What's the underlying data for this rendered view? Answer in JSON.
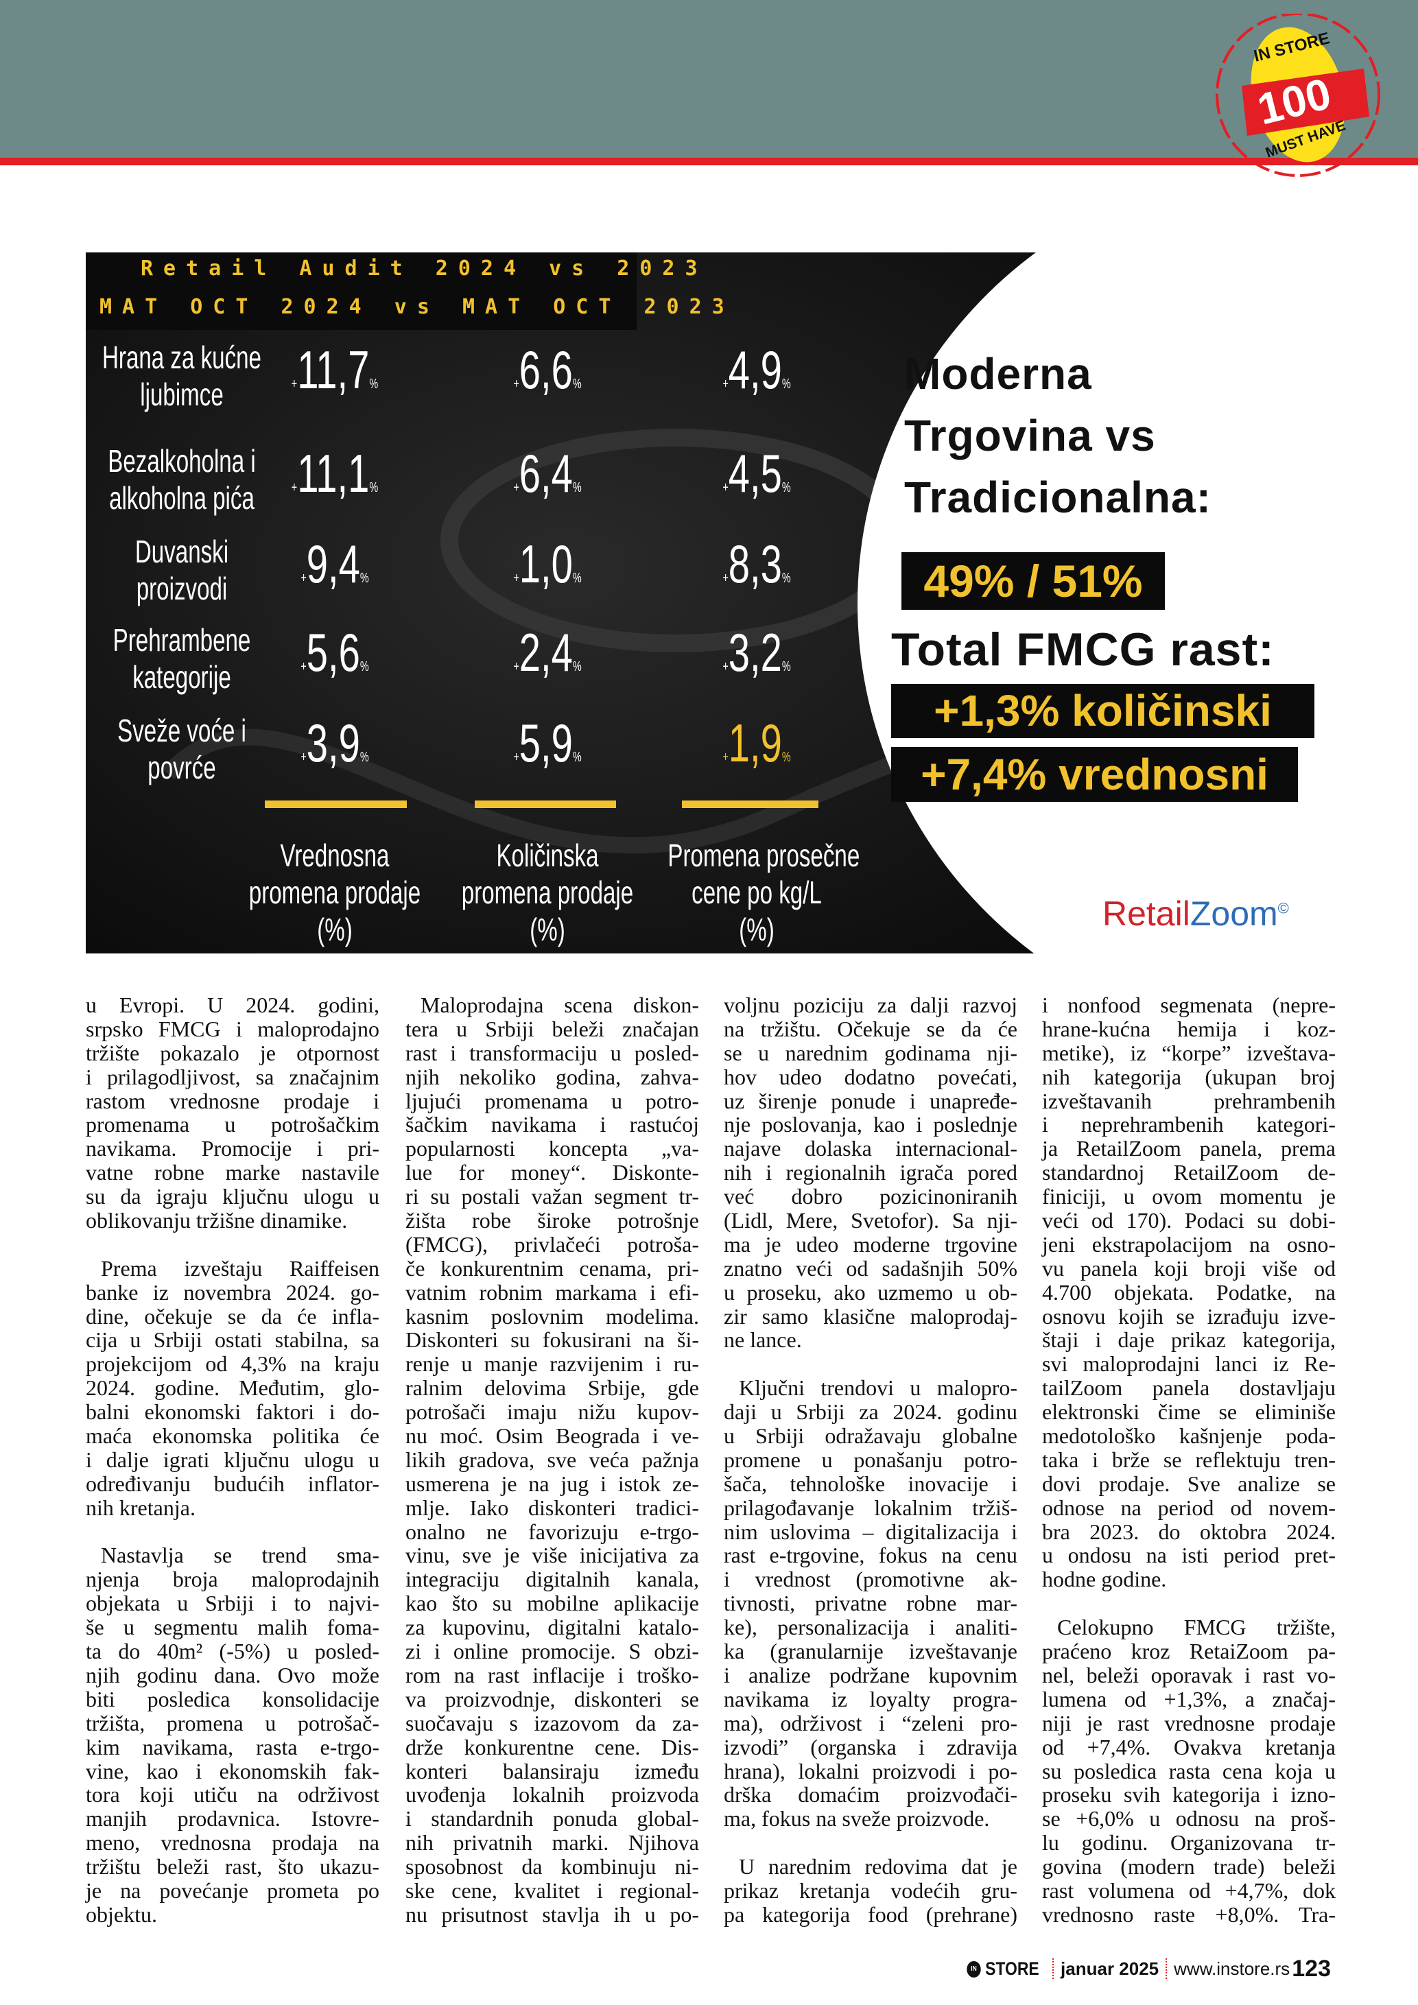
{
  "badge": {
    "brand": "IN STORE",
    "number": "100",
    "tagline": "MUST HAVE"
  },
  "infographic": {
    "title_line1": "Retail Audit 2024 vs 2023",
    "title_line2": "MAT OCT 2024 vs MAT OCT 2023",
    "rows": [
      {
        "label": [
          "Hrana za kućne",
          "ljubimce"
        ],
        "values": [
          "11,7",
          "6,6",
          "4,9"
        ]
      },
      {
        "label": [
          "Bezalkoholna i",
          "alkoholna pića"
        ],
        "values": [
          "11,1",
          "6,4",
          "4,5"
        ]
      },
      {
        "label": [
          "Duvanski",
          "proizvodi"
        ],
        "values": [
          "9,4",
          "1,0",
          "8,3"
        ]
      },
      {
        "label": [
          "Prehrambene",
          "kategorije"
        ],
        "values": [
          "5,6",
          "2,4",
          "3,2"
        ]
      },
      {
        "label": [
          "Sveže voće i",
          "povrće"
        ],
        "values": [
          "3,9",
          "5,9",
          "1,9"
        ]
      }
    ],
    "value_prefix": "+",
    "value_suffix": "%",
    "highlighted_value": "1,9",
    "columns": [
      [
        "Vrednosna",
        "promena prodaje",
        "(%)"
      ],
      [
        "Količinska",
        "promena prodaje",
        "(%)"
      ],
      [
        "Promena prosečne",
        "cene po kg/L",
        "(%)"
      ]
    ],
    "headline": [
      "Moderna",
      "Trgovina vs",
      "Tradicionalna:"
    ],
    "share": "49% / 51%",
    "total_title": "Total FMCG rast:",
    "growth_volume": "+1,3% količinski",
    "growth_value": "+7,4% vrednosni",
    "logo_part1": "Retail",
    "logo_part2": "Zoom",
    "logo_mark": "©",
    "colors": {
      "accent": "#f2c12e",
      "dark": "#0b0b0b",
      "logo_red": "#d2232a",
      "logo_blue": "#2d6db5"
    }
  },
  "body": {
    "columns": [
      [
        {
          "continued": true,
          "lines": [
            "u Evropi. U 2024. godini,",
            "srpsko FMCG i maloprodajno",
            "tržište pokazalo je otpornost",
            "i prilagodljivost, sa značajnim",
            "rastom vrednosne prodaje i",
            "promenama u potrošačkim",
            "navikama. Promocije i pri-",
            "vatne robne marke nastavile",
            "su da igraju ključnu ulogu u",
            "oblikovanju tržišne dinamike."
          ]
        },
        {
          "continued": false,
          "lines": [
            "Prema izveštaju Raiffeisen",
            "banke iz novembra 2024. go-",
            "dine, očekuje se da će infla-",
            "cija u Srbiji ostati stabilna, sa",
            "projekcijom od 4,3% na kraju",
            "2024. godine. Međutim, glo-",
            "balni ekonomski faktori i do-",
            "maća ekonomska politika će",
            "i dalje igrati ključnu ulogu u",
            "određivanju budućih inflator-",
            "nih kretanja."
          ]
        },
        {
          "continued": false,
          "lines": [
            "Nastavlja se trend sma-",
            "njenja broja maloprodajnih",
            "objekata u Srbiji i to najvi-",
            "še u segmentu malih foma-",
            "ta do 40m² (-5%) u posled-",
            "njih godinu dana. Ovo može",
            "biti posledica konsolidacije",
            "tržišta, promena u potrošač-",
            "kim navikama, rasta e-trgo-",
            "vine, kao i ekonomskih fak-",
            "tora koji utiču na održivost",
            "manjih prodavnica. Istovre-",
            "meno, vrednosna prodaja na",
            "tržištu beleži rast, što ukazu-",
            "je na povećanje prometa po",
            "objektu."
          ]
        }
      ],
      [
        {
          "continued": false,
          "lines": [
            "Maloprodajna scena diskon-",
            "tera u Srbiji beleži značajan",
            "rast i transformaciju u posled-",
            "njih nekoliko godina, zahva-",
            "ljujući promenama u potro-",
            "šačkim navikama i rastućoj",
            "popularnosti koncepta „va-",
            "lue for money“. Diskonte-",
            "ri su postali važan segment tr-",
            "žišta robe široke potrošnje",
            "(FMCG), privlačeći potroša-",
            "če konkurentnim cenama, pri-",
            "vatnim robnim markama i efi-",
            "kasnim poslovnim modelima.",
            "Diskonteri su fokusirani na ši-",
            "renje u manje razvijenim i ru-",
            "ralnim delovima Srbije, gde",
            "potrošači imaju nižu kupov-",
            "nu moć. Osim Beograda i ve-",
            "likih gradova, sve veća pažnja",
            "usmerena je na jug i istok ze-",
            "mlje. Iako diskonteri tradici-",
            "onalno ne favorizuju e-trgo-",
            "vinu, sve je više inicijativa za",
            "integraciju digitalnih kanala,",
            "kao što su mobilne aplikacije",
            "za kupovinu, digitalni katalo-",
            "zi i online promocije. S obzi-",
            "rom na rast inflacije i troško-",
            "va proizvodnje, diskonteri se",
            "suočavaju s izazovom da za-",
            "drže konkurentne cene. Dis-",
            "konteri balansiraju između",
            "uvođenja lokalnih proizvoda",
            "i standardnih ponuda global-",
            "nih privatnih marki. Njihova",
            "sposobnost da kombinuju ni-",
            "ske cene, kvalitet i regional-",
            "nu prisutnost stavlja ih u po-"
          ],
          "open_end": true
        }
      ],
      [
        {
          "continued": true,
          "lines": [
            "voljnu poziciju za dalji razvoj",
            "na tržištu. Očekuje se da će",
            "se u narednim godinama nji-",
            "hov udeo dodatno povećati,",
            "uz širenje ponude i unapređe-",
            "nje poslovanja, kao i poslednje",
            "najave dolaska internacional-",
            "nih i regionalnih igrača pored",
            "već dobro pozicinoniranih",
            "(Lidl, Mere, Svetofor). Sa nji-",
            "ma je udeo moderne trgovine",
            "znatno veći od sadašnjih 50%",
            "u proseku, ako uzmemo u ob-",
            "zir samo klasične maloprodaj-",
            "ne lance."
          ]
        },
        {
          "continued": false,
          "lines": [
            "Ključni trendovi u malopro-",
            "daji u Srbiji za 2024. godinu",
            "u Srbiji odražavaju globalne",
            "promene u ponašanju potro-",
            "šača, tehnološke inovacije i",
            "prilagođavanje lokalnim tržiš-",
            "nim uslovima – digitalizacija i",
            "rast e-trgovine, fokus na cenu",
            "i vrednost (promotivne ak-",
            "tivnosti, privatne robne mar-",
            "ke), personalizacija i analiti-",
            "ka (granularnije izveštavanje",
            "i analize podržane kupovnim",
            "navikama iz loyalty progra-",
            "ma), održivost i “zeleni pro-",
            "izvodi” (organska i zdravija",
            "hrana), lokalni proizvodi i po-",
            "drška domaćim proizvođači-",
            "ma, fokus na sveže proizvode."
          ]
        },
        {
          "continued": false,
          "lines": [
            "U narednim redovima dat je",
            "prikaz kretanja vodećih gru-",
            "pa kategorija food (prehrane)"
          ],
          "open_end": true
        }
      ],
      [
        {
          "continued": true,
          "lines": [
            "i nonfood segmenata (nepre-",
            "hrane-kućna hemija i koz-",
            "metike), iz “korpe” izveštava-",
            "nih kategorija (ukupan broj",
            "izveštavanih prehrambenih",
            "i neprehrambenih kategori-",
            "ja RetailZoom panela, prema",
            "standardnoj RetailZoom de-",
            "finiciji, u ovom momentu je",
            "veći od 170). Podaci su dobi-",
            "jeni ekstrapolacijom na osno-",
            "vu panela koji broji više od",
            "4.700 objekata. Podatke, na",
            "osnovu kojih se izrađuju izve-",
            "štaji i daje prikaz kategorija,",
            "svi maloprodajni lanci iz Re-",
            "tailZoom panela dostavljaju",
            "elektronski čime se eliminiše",
            "medotološko kašnjenje poda-",
            "taka i brže se reflektuju tren-",
            "dovi prodaje. Sve analize se",
            "odnose na period od novem-",
            "bra 2023. do oktobra 2024.",
            "u ondosu na isti period pret-",
            "hodne godine."
          ]
        },
        {
          "continued": false,
          "lines": [
            "Celokupno FMCG tržište,",
            "praćeno kroz RetaiZoom pa-",
            "nel, beleži oporavak i rast vo-",
            "lumena od +1,3%, a značaj-",
            "niji je rast vrednosne prodaje",
            "od +7,4%. Ovakva kretanja",
            "su posledica rasta cena koja u",
            "proseku svih kategorija i izno-",
            "se +6,0% u odnosu na proš-",
            "lu godinu. Organizovana tr-",
            "govina (modern trade) beleži",
            "rast volumena od +4,7%, dok",
            "vrednosno raste +8,0%. Tra-"
          ],
          "open_end": true
        }
      ]
    ]
  },
  "footer": {
    "brand": "STORE",
    "brand_mark": "IN",
    "issue": "januar 2025",
    "website": "www.instore.rs",
    "page_number": "123"
  }
}
